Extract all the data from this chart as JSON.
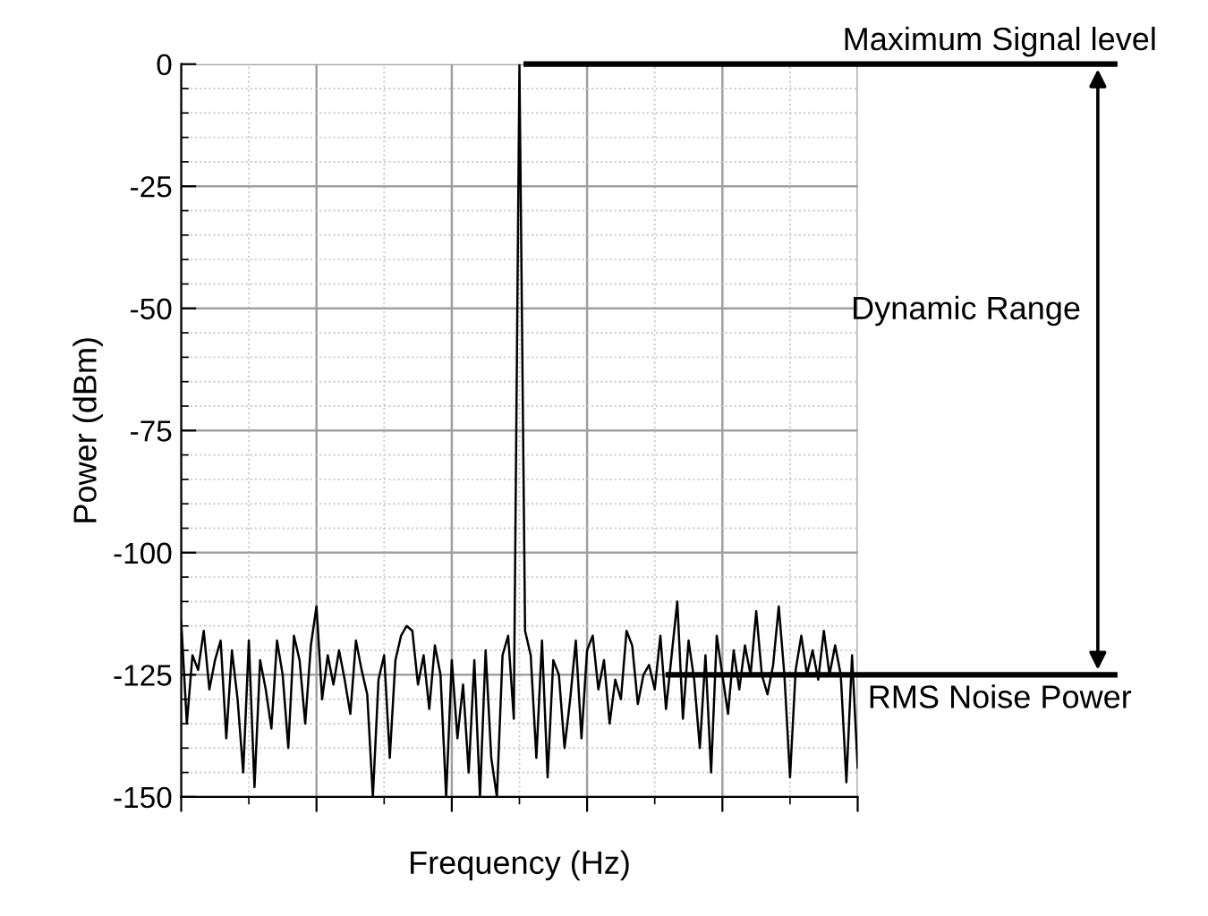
{
  "chart_data": {
    "type": "line",
    "xlabel": "Frequency (Hz)",
    "ylabel": "Power (dBm)",
    "categories": [
      null,
      null,
      null,
      null,
      null,
      null,
      null,
      null,
      null,
      null,
      null,
      null,
      null,
      null,
      null,
      null,
      null,
      null,
      null,
      null,
      null,
      null,
      null,
      null,
      null,
      null,
      null,
      null,
      null,
      null,
      null,
      null,
      null,
      null,
      null,
      null,
      null,
      null,
      null,
      null,
      null,
      null,
      null,
      null,
      null,
      null,
      null,
      null,
      null,
      null,
      null,
      null,
      null,
      null,
      null,
      null,
      null,
      null,
      null,
      null,
      null,
      null,
      null,
      null,
      null,
      null,
      null,
      null,
      null,
      null,
      null,
      null,
      null,
      null,
      null,
      null,
      null,
      null,
      null,
      null,
      null,
      null,
      null,
      null,
      null,
      null,
      null,
      null,
      null,
      null,
      null,
      null,
      null,
      null,
      null,
      null,
      null,
      null,
      null,
      null,
      null,
      null,
      null,
      null,
      null,
      null,
      null,
      null,
      null,
      null,
      null,
      null,
      null,
      null,
      null,
      null,
      null,
      null,
      null,
      null,
      null
    ],
    "series": [
      {
        "color": "#000000",
        "values": [
          -114,
          -135,
          -121,
          -124,
          -116,
          -128,
          -122,
          -118,
          -138,
          -120,
          -130,
          -145,
          -118,
          -148,
          -122,
          -128,
          -136,
          -118,
          -125,
          -140,
          -117,
          -122,
          -135,
          -119,
          -111,
          -130,
          -121,
          -127,
          -120,
          -126,
          -133,
          -118,
          -124,
          -129,
          -150,
          -126,
          -121,
          -142,
          -122,
          -117,
          -115,
          -116,
          -127,
          -121,
          -132,
          -119,
          -125,
          -150,
          -122,
          -138,
          -127,
          -145,
          -122,
          -150,
          -120,
          -142,
          -150,
          -121,
          -117,
          -134,
          0,
          -116,
          -121,
          -142,
          -118,
          -146,
          -122,
          -125,
          -140,
          -130,
          -118,
          -138,
          -120,
          -117,
          -128,
          -122,
          -135,
          -126,
          -130,
          -116,
          -119,
          -131,
          -125,
          -123,
          -128,
          -117,
          -132,
          -121,
          -110,
          -134,
          -118,
          -126,
          -140,
          -121,
          -145,
          -117,
          -125,
          -133,
          -120,
          -128,
          -119,
          -125,
          -112,
          -125,
          -129,
          -123,
          -111,
          -125,
          -146,
          -124,
          -117,
          -125,
          -120,
          -126,
          -116,
          -125,
          -119,
          -125,
          -147,
          -121,
          -144
        ]
      }
    ],
    "ylim": [
      -150,
      0
    ],
    "yticks": [
      0,
      -25,
      -50,
      -75,
      -100,
      -125,
      -150
    ],
    "grid": true,
    "marker": "none",
    "line_style": "solid",
    "ref_lines": [
      {
        "axis": "y",
        "value": 0,
        "label": "Maximum Signal level",
        "color": "#000000"
      },
      {
        "axis": "y",
        "value": -125,
        "label": "RMS Noise Power",
        "color": "#000000"
      }
    ],
    "annotations": [
      "Dynamic Range"
    ]
  }
}
